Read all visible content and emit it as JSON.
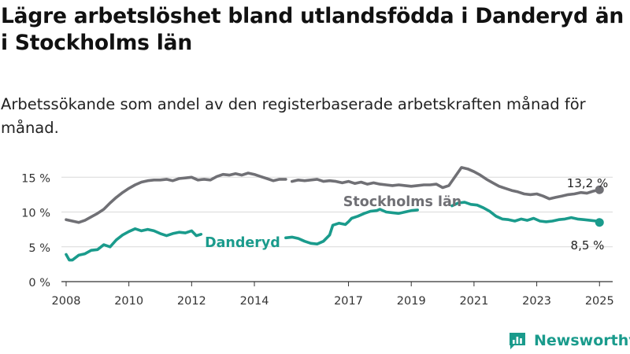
{
  "title": "Lägre arbetslöshet bland utlandsfödda i Danderyd än i Stockholms län",
  "subtitle": "Arbetssökande som andel av den registerbaserade arbetskraften månad för månad.",
  "brand": "Newsworthy",
  "chart_data": {
    "type": "line",
    "title": "Lägre arbetslöshet bland utlandsfödda i Danderyd än i Stockholms län",
    "subtitle": "Arbetssökande som andel av den registerbaserade arbetskraften månad för månad.",
    "xlabel": "",
    "ylabel": "",
    "x_ticks": [
      2008,
      2010,
      2012,
      2014,
      2017,
      2019,
      2021,
      2023,
      2025
    ],
    "y_ticks": [
      {
        "value": 0,
        "label": "0 %"
      },
      {
        "value": 5,
        "label": "5 %"
      },
      {
        "value": 10,
        "label": "10 %"
      },
      {
        "value": 15,
        "label": "15 %"
      }
    ],
    "xlim": [
      2007.85,
      2025.42
    ],
    "ylim": [
      0,
      16.5
    ],
    "grid": "horizontal",
    "series": [
      {
        "name": "Stockholms län",
        "color": "#707075",
        "label": "Stockholms län",
        "end_label": "13,2 %",
        "gaps": [
          [
            2015.0,
            2015.2
          ]
        ],
        "points": [
          [
            2008.0,
            8.9
          ],
          [
            2008.2,
            8.7
          ],
          [
            2008.4,
            8.5
          ],
          [
            2008.6,
            8.8
          ],
          [
            2008.8,
            9.3
          ],
          [
            2009.0,
            9.8
          ],
          [
            2009.2,
            10.4
          ],
          [
            2009.4,
            11.3
          ],
          [
            2009.6,
            12.1
          ],
          [
            2009.8,
            12.8
          ],
          [
            2010.0,
            13.4
          ],
          [
            2010.2,
            13.9
          ],
          [
            2010.4,
            14.3
          ],
          [
            2010.6,
            14.5
          ],
          [
            2010.8,
            14.6
          ],
          [
            2011.0,
            14.6
          ],
          [
            2011.2,
            14.7
          ],
          [
            2011.4,
            14.5
          ],
          [
            2011.6,
            14.8
          ],
          [
            2011.8,
            14.9
          ],
          [
            2012.0,
            15.0
          ],
          [
            2012.2,
            14.6
          ],
          [
            2012.4,
            14.7
          ],
          [
            2012.6,
            14.6
          ],
          [
            2012.8,
            15.1
          ],
          [
            2013.0,
            15.4
          ],
          [
            2013.2,
            15.3
          ],
          [
            2013.4,
            15.5
          ],
          [
            2013.6,
            15.3
          ],
          [
            2013.8,
            15.6
          ],
          [
            2014.0,
            15.4
          ],
          [
            2014.2,
            15.1
          ],
          [
            2014.4,
            14.8
          ],
          [
            2014.6,
            14.5
          ],
          [
            2014.8,
            14.7
          ],
          [
            2015.0,
            14.7
          ],
          [
            2015.2,
            14.4
          ],
          [
            2015.4,
            14.6
          ],
          [
            2015.6,
            14.5
          ],
          [
            2015.8,
            14.6
          ],
          [
            2016.0,
            14.7
          ],
          [
            2016.2,
            14.4
          ],
          [
            2016.4,
            14.5
          ],
          [
            2016.6,
            14.4
          ],
          [
            2016.8,
            14.2
          ],
          [
            2017.0,
            14.4
          ],
          [
            2017.2,
            14.1
          ],
          [
            2017.4,
            14.3
          ],
          [
            2017.6,
            14.0
          ],
          [
            2017.8,
            14.2
          ],
          [
            2018.0,
            14.0
          ],
          [
            2018.2,
            13.9
          ],
          [
            2018.4,
            13.8
          ],
          [
            2018.6,
            13.9
          ],
          [
            2018.8,
            13.8
          ],
          [
            2019.0,
            13.7
          ],
          [
            2019.2,
            13.8
          ],
          [
            2019.4,
            13.9
          ],
          [
            2019.6,
            13.9
          ],
          [
            2019.8,
            14.0
          ],
          [
            2020.0,
            13.5
          ],
          [
            2020.2,
            13.8
          ],
          [
            2020.4,
            15.1
          ],
          [
            2020.6,
            16.4
          ],
          [
            2020.8,
            16.2
          ],
          [
            2021.0,
            15.8
          ],
          [
            2021.2,
            15.3
          ],
          [
            2021.4,
            14.7
          ],
          [
            2021.6,
            14.2
          ],
          [
            2021.8,
            13.7
          ],
          [
            2022.0,
            13.4
          ],
          [
            2022.2,
            13.1
          ],
          [
            2022.4,
            12.9
          ],
          [
            2022.6,
            12.6
          ],
          [
            2022.8,
            12.5
          ],
          [
            2023.0,
            12.6
          ],
          [
            2023.2,
            12.3
          ],
          [
            2023.4,
            11.9
          ],
          [
            2023.6,
            12.1
          ],
          [
            2023.8,
            12.3
          ],
          [
            2024.0,
            12.5
          ],
          [
            2024.2,
            12.6
          ],
          [
            2024.4,
            12.8
          ],
          [
            2024.6,
            12.7
          ],
          [
            2024.8,
            13.0
          ],
          [
            2025.0,
            13.2
          ]
        ]
      },
      {
        "name": "Danderyd",
        "color": "#1a9b8c",
        "label": "Danderyd",
        "end_label": "8,5 %",
        "gaps": [
          [
            2012.3,
            2015.0
          ],
          [
            2019.2,
            2020.3
          ]
        ],
        "points": [
          [
            2008.0,
            3.9
          ],
          [
            2008.1,
            3.1
          ],
          [
            2008.2,
            3.1
          ],
          [
            2008.4,
            3.8
          ],
          [
            2008.6,
            4.0
          ],
          [
            2008.8,
            4.5
          ],
          [
            2009.0,
            4.6
          ],
          [
            2009.2,
            5.3
          ],
          [
            2009.4,
            5.0
          ],
          [
            2009.6,
            6.0
          ],
          [
            2009.8,
            6.7
          ],
          [
            2010.0,
            7.2
          ],
          [
            2010.2,
            7.6
          ],
          [
            2010.4,
            7.3
          ],
          [
            2010.6,
            7.5
          ],
          [
            2010.8,
            7.3
          ],
          [
            2011.0,
            6.9
          ],
          [
            2011.2,
            6.6
          ],
          [
            2011.4,
            6.9
          ],
          [
            2011.6,
            7.1
          ],
          [
            2011.8,
            7.0
          ],
          [
            2012.0,
            7.3
          ],
          [
            2012.15,
            6.6
          ],
          [
            2012.3,
            6.8
          ],
          [
            2015.0,
            6.3
          ],
          [
            2015.2,
            6.4
          ],
          [
            2015.4,
            6.2
          ],
          [
            2015.6,
            5.8
          ],
          [
            2015.8,
            5.5
          ],
          [
            2016.0,
            5.4
          ],
          [
            2016.2,
            5.8
          ],
          [
            2016.4,
            6.7
          ],
          [
            2016.5,
            8.1
          ],
          [
            2016.7,
            8.4
          ],
          [
            2016.9,
            8.2
          ],
          [
            2017.0,
            8.6
          ],
          [
            2017.1,
            9.1
          ],
          [
            2017.3,
            9.4
          ],
          [
            2017.5,
            9.8
          ],
          [
            2017.7,
            10.1
          ],
          [
            2017.9,
            10.2
          ],
          [
            2018.0,
            10.4
          ],
          [
            2018.2,
            10.0
          ],
          [
            2018.4,
            9.9
          ],
          [
            2018.6,
            9.8
          ],
          [
            2018.8,
            10.0
          ],
          [
            2019.0,
            10.2
          ],
          [
            2019.2,
            10.3
          ],
          [
            2020.3,
            10.9
          ],
          [
            2020.5,
            11.3
          ],
          [
            2020.7,
            11.4
          ],
          [
            2020.9,
            11.1
          ],
          [
            2021.1,
            11.0
          ],
          [
            2021.3,
            10.6
          ],
          [
            2021.5,
            10.1
          ],
          [
            2021.7,
            9.4
          ],
          [
            2021.9,
            9.0
          ],
          [
            2022.1,
            8.9
          ],
          [
            2022.3,
            8.7
          ],
          [
            2022.5,
            9.0
          ],
          [
            2022.7,
            8.8
          ],
          [
            2022.9,
            9.1
          ],
          [
            2023.1,
            8.7
          ],
          [
            2023.3,
            8.6
          ],
          [
            2023.5,
            8.7
          ],
          [
            2023.7,
            8.9
          ],
          [
            2023.9,
            9.0
          ],
          [
            2024.1,
            9.2
          ],
          [
            2024.3,
            9.0
          ],
          [
            2024.5,
            8.9
          ],
          [
            2024.7,
            8.8
          ],
          [
            2024.9,
            8.7
          ],
          [
            2025.0,
            8.5
          ]
        ]
      }
    ]
  }
}
